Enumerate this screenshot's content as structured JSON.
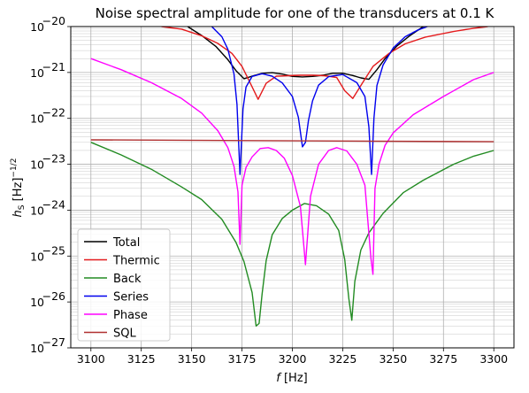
{
  "chart_data": {
    "type": "line",
    "title": "Noise spectral amplitude for one of the transducers at 0.1 K",
    "xlabel": {
      "var": "f",
      "unit": " [Hz]"
    },
    "ylabel": {
      "var": "h",
      "sub": "S",
      "unit": " [Hz]",
      "sup": "−1/2"
    },
    "xlim": [
      3090,
      3310
    ],
    "ylim": [
      1e-27,
      1e-20
    ],
    "yscale": "log",
    "grid": true,
    "legend_position": "lower-left",
    "xticks": [
      "3100",
      "3125",
      "3150",
      "3175",
      "3200",
      "3225",
      "3250",
      "3275",
      "3300"
    ],
    "xtick_values": [
      3100,
      3125,
      3150,
      3175,
      3200,
      3225,
      3250,
      3275,
      3300
    ],
    "yticks": [
      {
        "base": "10",
        "exp": "−20",
        "value": 1e-20
      },
      {
        "base": "10",
        "exp": "−21",
        "value": 1e-21
      },
      {
        "base": "10",
        "exp": "−22",
        "value": 1e-22
      },
      {
        "base": "10",
        "exp": "−23",
        "value": 1e-23
      },
      {
        "base": "10",
        "exp": "−24",
        "value": 1e-24
      },
      {
        "base": "10",
        "exp": "−25",
        "value": 1e-25
      },
      {
        "base": "10",
        "exp": "−26",
        "value": 1e-26
      },
      {
        "base": "10",
        "exp": "−27",
        "value": 1e-27
      }
    ],
    "series": [
      {
        "name": "Total",
        "color": "#000000",
        "x": [
          3148,
          3155,
          3162,
          3168,
          3172,
          3176,
          3180,
          3185,
          3190,
          3195,
          3200,
          3205,
          3210,
          3215,
          3220,
          3225,
          3230,
          3234,
          3238,
          3242,
          3246,
          3252,
          3258,
          3265
        ],
        "y": [
          1e-20,
          6.4e-21,
          3.7e-21,
          1.9e-21,
          1.1e-21,
          7.3e-22,
          8.3e-22,
          9.6e-22,
          9.9e-22,
          9.2e-22,
          8.2e-22,
          8e-22,
          8.2e-22,
          8.7e-22,
          9.6e-22,
          9.6e-22,
          8.6e-22,
          7.6e-22,
          7.1e-22,
          1.15e-21,
          2e-21,
          3.8e-21,
          6.2e-21,
          1e-20
        ]
      },
      {
        "name": "Thermic",
        "color": "#e41a1c",
        "x": [
          3135,
          3145,
          3155,
          3163,
          3170,
          3175,
          3179,
          3183,
          3187,
          3192,
          3198,
          3204,
          3210,
          3216,
          3222,
          3226,
          3230,
          3235,
          3240,
          3248,
          3256,
          3266,
          3280,
          3290,
          3297
        ],
        "y": [
          1e-20,
          8.8e-21,
          6.3e-21,
          4.3e-21,
          2.6e-21,
          1.35e-21,
          6e-22,
          2.6e-22,
          5.8e-22,
          8.3e-22,
          8.5e-22,
          8.7e-22,
          8.7e-22,
          8.5e-22,
          7.8e-22,
          4e-22,
          2.7e-22,
          6.1e-22,
          1.35e-21,
          2.6e-21,
          4.2e-21,
          5.9e-21,
          7.8e-21,
          9.2e-21,
          1e-20
        ]
      },
      {
        "name": "Back",
        "color": "#228b22",
        "x": [
          3100,
          3115,
          3130,
          3145,
          3155,
          3165,
          3172,
          3176,
          3180,
          3182,
          3183.5,
          3185,
          3187,
          3190,
          3195,
          3200,
          3206,
          3212,
          3218,
          3223,
          3226,
          3228,
          3229.5,
          3231,
          3234,
          3238,
          3245,
          3255,
          3265,
          3280,
          3290,
          3300
        ],
        "y": [
          3e-23,
          1.6e-23,
          7.8e-24,
          3.2e-24,
          1.7e-24,
          6.3e-25,
          2e-25,
          7.6e-26,
          1.6e-26,
          3e-27,
          3.4e-27,
          1.5e-26,
          8e-26,
          2.9e-25,
          6.6e-25,
          1e-24,
          1.4e-24,
          1.25e-24,
          8.2e-25,
          3.6e-25,
          8.4e-26,
          1.2e-26,
          4e-27,
          2.8e-26,
          1.35e-25,
          3.2e-25,
          8.5e-25,
          2.4e-24,
          4.5e-24,
          1e-23,
          1.5e-23,
          2e-23
        ]
      },
      {
        "name": "Series",
        "color": "#0000ee",
        "x": [
          3160,
          3165,
          3168,
          3171,
          3172.5,
          3174,
          3175.5,
          3177,
          3180,
          3185,
          3190,
          3195,
          3200,
          3203,
          3205,
          3206.5,
          3208,
          3210,
          3213,
          3218,
          3225,
          3232,
          3236,
          3238,
          3239.3,
          3240.5,
          3242,
          3245,
          3250,
          3256,
          3262,
          3267
        ],
        "y": [
          1e-20,
          6e-21,
          3.2e-21,
          9.3e-22,
          2e-22,
          6e-24,
          1.6e-22,
          4.8e-22,
          8.2e-22,
          9.4e-22,
          8.3e-22,
          5.9e-22,
          3e-22,
          1.05e-22,
          2.4e-23,
          3e-23,
          9e-23,
          2.4e-22,
          5.3e-22,
          8.1e-22,
          9e-22,
          6e-22,
          3e-22,
          6.5e-23,
          6e-24,
          1e-22,
          5.2e-22,
          1.45e-21,
          3.4e-21,
          6e-21,
          8.3e-21,
          1e-20
        ]
      },
      {
        "name": "Phase",
        "color": "#ff00ff",
        "x": [
          3100,
          3115,
          3130,
          3145,
          3155,
          3163,
          3168,
          3171,
          3173,
          3174,
          3175,
          3177,
          3180,
          3184,
          3188,
          3192,
          3196,
          3200,
          3204,
          3206.5,
          3209,
          3213,
          3218,
          3222,
          3227,
          3232,
          3236,
          3239,
          3240,
          3241,
          3243,
          3246,
          3250,
          3260,
          3275,
          3290,
          3300
        ],
        "y": [
          2e-21,
          1.15e-21,
          6e-22,
          2.7e-22,
          1.3e-22,
          5.4e-23,
          2.3e-23,
          9e-24,
          2.5e-24,
          1.8e-25,
          3.5e-24,
          8.5e-24,
          1.45e-23,
          2.2e-23,
          2.3e-23,
          2e-23,
          1.35e-23,
          5.7e-24,
          1.2e-24,
          6.5e-26,
          2e-24,
          1e-23,
          2e-23,
          2.3e-23,
          1.95e-23,
          1e-23,
          3.5e-24,
          9e-26,
          4e-26,
          3e-24,
          1e-23,
          2.6e-23,
          4.8e-23,
          1.2e-22,
          3e-22,
          7e-22,
          1e-21
        ]
      },
      {
        "name": "SQL",
        "color": "#b03030",
        "x": [
          3100,
          3300
        ],
        "y": [
          3.4e-23,
          3.1e-23
        ]
      }
    ]
  }
}
